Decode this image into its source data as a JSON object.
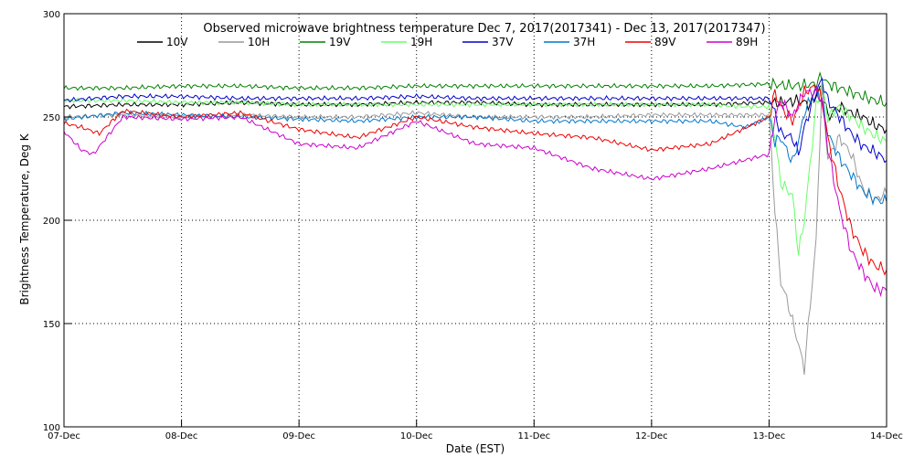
{
  "chart_data": {
    "type": "line",
    "title": "Observed microwave brightness temperature Dec  7, 2017(2017341) - Dec 13, 2017(2017347)",
    "xlabel": "Date (EST)",
    "ylabel": "Brightness Temperature, Deg K",
    "ylim": [
      100,
      300
    ],
    "xlim": [
      0,
      7
    ],
    "yticks": [
      100,
      150,
      200,
      250,
      300
    ],
    "x_tick_labels": [
      "07-Dec",
      "08-Dec",
      "09-Dec",
      "10-Dec",
      "11-Dec",
      "12-Dec",
      "13-Dec",
      "14-Dec"
    ],
    "grid": "dotted",
    "legend_position": "top",
    "x_units_note": "",
    "series": [
      {
        "name": "10V",
        "color": "#000000",
        "x": [
          0,
          0.5,
          1.0,
          1.5,
          2.0,
          2.5,
          3.0,
          3.5,
          4.0,
          4.5,
          5.0,
          5.5,
          6.0,
          6.1,
          6.25,
          6.35,
          6.45,
          6.5,
          6.6,
          6.7,
          6.8,
          6.9,
          7.0
        ],
        "y": [
          255,
          256,
          256,
          257,
          256,
          256,
          257,
          257,
          256,
          256,
          256,
          256,
          257,
          257,
          258,
          256,
          265,
          250,
          255,
          252,
          250,
          246,
          244
        ]
      },
      {
        "name": "10H",
        "color": "#999999",
        "x": [
          0,
          0.5,
          1.0,
          1.5,
          2.0,
          2.5,
          3.0,
          3.5,
          4.0,
          4.5,
          5.0,
          5.5,
          6.0,
          6.05,
          6.1,
          6.15,
          6.25,
          6.3,
          6.4,
          6.45,
          6.5,
          6.6,
          6.7,
          6.8,
          6.9,
          7.0
        ],
        "y": [
          250,
          251,
          250,
          251,
          250,
          250,
          252,
          250,
          250,
          250,
          251,
          251,
          251,
          205,
          170,
          162,
          140,
          128,
          190,
          265,
          230,
          240,
          232,
          215,
          210,
          213
        ]
      },
      {
        "name": "19V",
        "color": "#008000",
        "x": [
          0,
          0.5,
          1.0,
          1.5,
          2.0,
          2.5,
          3.0,
          3.5,
          4.0,
          4.5,
          5.0,
          5.5,
          6.0,
          6.2,
          6.4,
          6.45,
          6.5,
          6.6,
          6.7,
          6.8,
          6.9,
          7.0
        ],
        "y": [
          264,
          264,
          265,
          265,
          264,
          264,
          265,
          265,
          265,
          265,
          265,
          265,
          266,
          265,
          266,
          270,
          266,
          264,
          262,
          260,
          258,
          257
        ]
      },
      {
        "name": "19H",
        "color": "#66ff66",
        "x": [
          0,
          0.5,
          1.0,
          1.5,
          2.0,
          2.5,
          3.0,
          3.5,
          4.0,
          4.5,
          5.0,
          5.5,
          5.8,
          6.0,
          6.05,
          6.1,
          6.2,
          6.25,
          6.3,
          6.4,
          6.45,
          6.5,
          6.6,
          6.7,
          6.8,
          6.9,
          7.0
        ],
        "y": [
          258,
          258,
          257,
          257,
          256,
          256,
          256,
          256,
          256,
          256,
          256,
          256,
          255,
          255,
          240,
          218,
          212,
          184,
          200,
          255,
          266,
          250,
          255,
          250,
          245,
          241,
          238
        ]
      },
      {
        "name": "37V",
        "color": "#0000cc",
        "x": [
          0,
          0.5,
          1.0,
          1.5,
          2.0,
          2.5,
          3.0,
          3.5,
          4.0,
          4.5,
          5.0,
          5.5,
          6.0,
          6.05,
          6.1,
          6.2,
          6.25,
          6.3,
          6.4,
          6.45,
          6.5,
          6.6,
          6.7,
          6.8,
          6.9,
          7.0
        ],
        "y": [
          258,
          260,
          260,
          259,
          259,
          259,
          260,
          259,
          259,
          259,
          259,
          259,
          259,
          252,
          242,
          240,
          232,
          245,
          262,
          268,
          258,
          250,
          242,
          236,
          233,
          229
        ]
      },
      {
        "name": "37H",
        "color": "#0077cc",
        "x": [
          0,
          0.5,
          1.0,
          1.5,
          2.0,
          2.5,
          3.0,
          3.5,
          4.0,
          4.5,
          5.0,
          5.5,
          5.8,
          6.0,
          6.05,
          6.1,
          6.2,
          6.25,
          6.3,
          6.4,
          6.45,
          6.5,
          6.6,
          6.7,
          6.8,
          6.9,
          7.0
        ],
        "y": [
          249,
          252,
          251,
          250,
          249,
          248,
          250,
          250,
          248,
          248,
          248,
          248,
          245,
          250,
          238,
          240,
          228,
          238,
          252,
          264,
          258,
          242,
          230,
          222,
          214,
          210,
          209
        ]
      },
      {
        "name": "89V",
        "color": "#ee0000",
        "x": [
          0,
          0.15,
          0.3,
          0.5,
          1.0,
          1.5,
          2.0,
          2.5,
          3.0,
          3.5,
          4.0,
          4.5,
          5.0,
          5.5,
          6.0,
          6.05,
          6.1,
          6.2,
          6.3,
          6.4,
          6.45,
          6.5,
          6.6,
          6.7,
          6.8,
          6.9,
          7.0
        ],
        "y": [
          247,
          245,
          242,
          253,
          250,
          252,
          244,
          240,
          250,
          245,
          242,
          240,
          234,
          237,
          250,
          262,
          255,
          248,
          262,
          265,
          258,
          240,
          215,
          196,
          185,
          178,
          176
        ]
      },
      {
        "name": "89H",
        "color": "#cc00cc",
        "x": [
          0,
          0.15,
          0.25,
          0.5,
          1.0,
          1.5,
          2.0,
          2.5,
          3.0,
          3.5,
          4.0,
          4.5,
          5.0,
          5.5,
          6.0,
          6.05,
          6.1,
          6.2,
          6.3,
          6.4,
          6.45,
          6.5,
          6.6,
          6.7,
          6.8,
          6.9,
          7.0
        ],
        "y": [
          243,
          234,
          232,
          250,
          249,
          250,
          237,
          235,
          248,
          237,
          235,
          225,
          220,
          225,
          232,
          250,
          258,
          250,
          262,
          262,
          258,
          235,
          205,
          185,
          175,
          167,
          166
        ]
      }
    ]
  }
}
